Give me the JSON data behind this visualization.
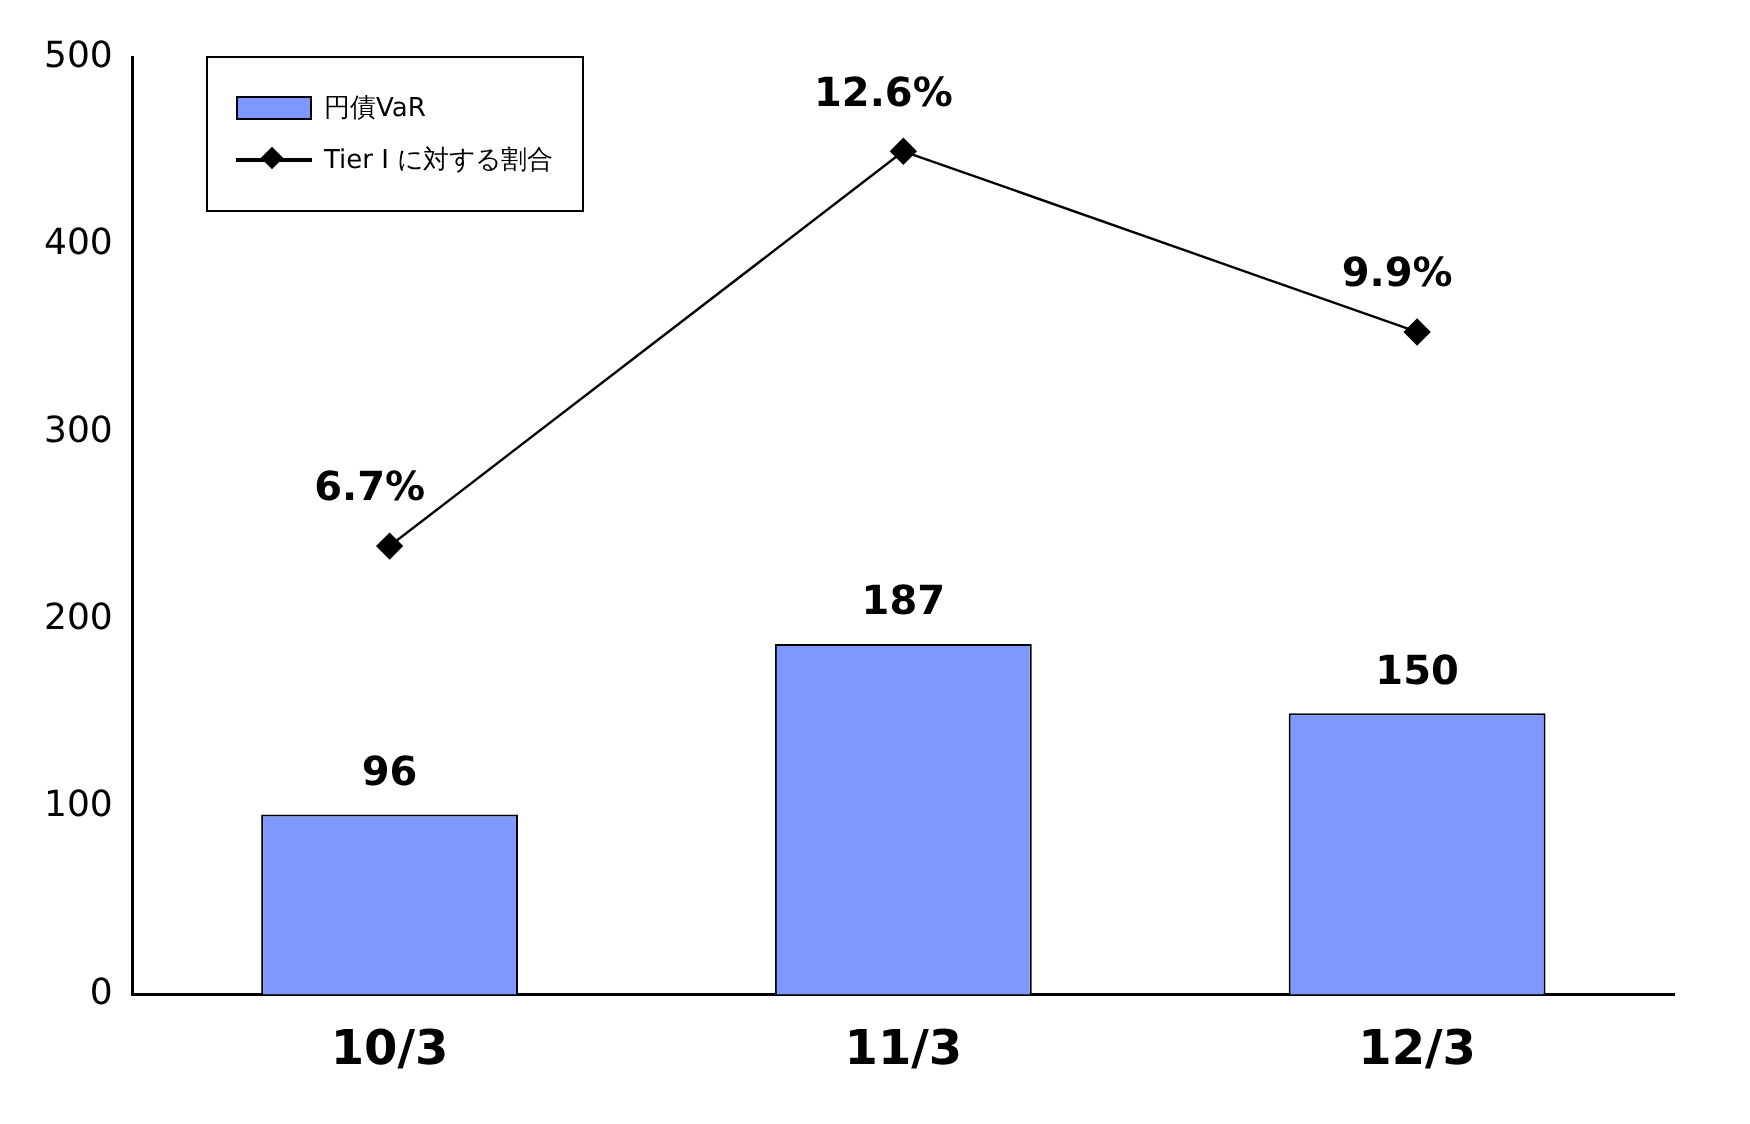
{
  "chart_data": {
    "type": "bar",
    "categories": [
      "10/3",
      "11/3",
      "12/3"
    ],
    "series": [
      {
        "name": "円債VaR",
        "color": "#7f98ff",
        "values": [
          96,
          187,
          150
        ],
        "value_labels": [
          "96",
          "187",
          "150"
        ]
      },
      {
        "name": "Tier I に対する割合",
        "type": "line",
        "axis": "y2",
        "color": "#000000",
        "marker": "diamond",
        "values": [
          6.7,
          12.6,
          9.9
        ],
        "value_labels": [
          "6.7%",
          "12.6%",
          "9.9%"
        ]
      }
    ],
    "ylim": [
      0,
      500
    ],
    "yticks": [
      0,
      100,
      200,
      300,
      400,
      500
    ],
    "y2lim": [
      0,
      14
    ],
    "tick_labels": "y",
    "grid": false,
    "legend": "top left"
  }
}
